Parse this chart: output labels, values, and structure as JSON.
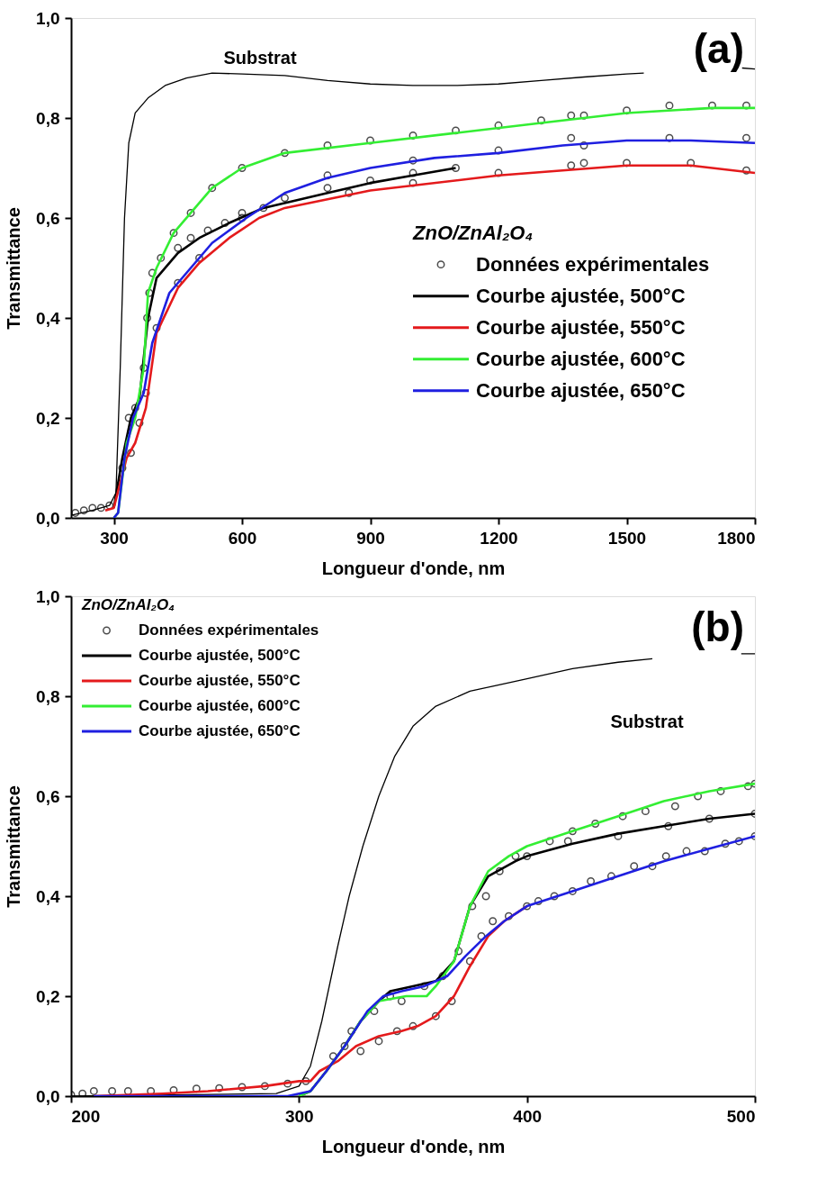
{
  "chart_data": [
    {
      "type": "line",
      "xlabel": "Longueur d'onde, nm",
      "ylabel": "Transmittance",
      "legend_title": "ZnO/ZnAl₂O₄",
      "legend": "right",
      "xlim": [
        200,
        1800
      ],
      "xticks": [
        300,
        600,
        900,
        1200,
        1500,
        1800
      ],
      "ylim": [
        0,
        1
      ],
      "yticks": [
        {
          "value": 0,
          "label": "0,0"
        },
        {
          "value": 0.2,
          "label": "0,2"
        },
        {
          "value": 0.4,
          "label": "0,4"
        },
        {
          "value": 0.6,
          "label": "0,6"
        },
        {
          "value": 0.8,
          "label": "0,8"
        },
        {
          "value": 1,
          "label": "1,0"
        }
      ],
      "annotations": [
        "(a)",
        "Substrat"
      ],
      "series": [
        {
          "color": "#000000",
          "x": [
            200,
            250,
            290,
            305,
            315,
            325,
            335,
            350,
            380,
            420,
            470,
            530,
            600,
            700,
            800,
            900,
            1000,
            1100,
            1200,
            1300,
            1400,
            1500,
            1540,
            1600,
            1770,
            1800
          ],
          "values": [
            0.005,
            0.015,
            0.025,
            0.05,
            0.3,
            0.6,
            0.75,
            0.81,
            0.84,
            0.865,
            0.88,
            0.89,
            0.888,
            0.885,
            0.875,
            0.868,
            0.865,
            0.865,
            0.868,
            0.875,
            0.882,
            0.888,
            0.89,
            null,
            0.9,
            0.898
          ]
        },
        {
          "type": "scatter",
          "name": "Données expérimentales",
          "color": "#000000",
          "marker": "circle",
          "x": [
            210,
            230,
            250,
            270,
            290,
            370,
            378,
            383,
            390,
            410,
            440,
            480,
            530,
            600,
            700,
            800,
            900,
            1000,
            1100,
            1200,
            1300,
            1370,
            1400,
            1500,
            1600,
            1700,
            1780,
            450,
            480,
            520,
            560,
            600,
            700,
            800,
            900,
            1000,
            1100,
            340,
            360,
            375,
            650,
            850,
            1000,
            1200,
            1370,
            1400,
            1500,
            1650,
            1780,
            320,
            335,
            350,
            400,
            450,
            500,
            600,
            800,
            1000,
            1200,
            1370,
            1400,
            1600,
            1780
          ],
          "values": [
            0.01,
            0.015,
            0.02,
            0.02,
            0.025,
            0.3,
            0.4,
            0.45,
            0.49,
            0.52,
            0.57,
            0.61,
            0.66,
            0.7,
            0.73,
            0.745,
            0.755,
            0.765,
            0.775,
            0.785,
            0.795,
            0.805,
            0.805,
            0.815,
            0.825,
            0.825,
            0.825,
            0.54,
            0.56,
            0.575,
            0.59,
            0.61,
            0.64,
            0.66,
            0.675,
            0.69,
            0.7,
            0.13,
            0.19,
            0.25,
            0.62,
            0.65,
            0.67,
            0.69,
            0.705,
            0.71,
            0.71,
            0.71,
            0.695,
            0.1,
            0.2,
            0.22,
            0.38,
            0.47,
            0.52,
            0.6,
            0.685,
            0.715,
            0.735,
            0.76,
            0.745,
            0.76,
            0.76
          ]
        },
        {
          "name": "Courbe ajustée, 500°C",
          "color": "#000000",
          "x": [
            300,
            320,
            340,
            360,
            380,
            400,
            450,
            500,
            570,
            650,
            800,
            900,
            1000,
            1100
          ],
          "values": [
            0.02,
            0.12,
            0.2,
            0.24,
            0.4,
            0.48,
            0.53,
            0.56,
            0.59,
            0.62,
            0.65,
            0.67,
            0.685,
            0.7
          ]
        },
        {
          "name": "Courbe ajustée, 550°C",
          "color": "#e41a1c",
          "x": [
            280,
            300,
            330,
            350,
            375,
            400,
            450,
            500,
            570,
            640,
            700,
            900,
            1200,
            1500,
            1650,
            1800
          ],
          "values": [
            0.015,
            0.02,
            0.12,
            0.15,
            0.22,
            0.37,
            0.46,
            0.51,
            0.56,
            0.6,
            0.62,
            0.655,
            0.685,
            0.705,
            0.705,
            0.69
          ]
        },
        {
          "name": "Courbe ajustée, 600°C",
          "color": "#33ee33",
          "x": [
            300,
            310,
            330,
            350,
            370,
            380,
            400,
            440,
            480,
            530,
            600,
            700,
            900,
            1100,
            1300,
            1400,
            1500,
            1700,
            1800
          ],
          "values": [
            0,
            0.01,
            0.15,
            0.2,
            0.3,
            0.45,
            0.5,
            0.57,
            0.61,
            0.66,
            0.7,
            0.73,
            0.75,
            0.77,
            0.79,
            0.8,
            0.81,
            0.82,
            0.82
          ]
        },
        {
          "name": "Courbe ajustée, 650°C",
          "color": "#1f1fe0",
          "x": [
            300,
            310,
            325,
            345,
            370,
            390,
            430,
            530,
            610,
            700,
            800,
            900,
            1050,
            1200,
            1350,
            1500,
            1650,
            1800
          ],
          "values": [
            0,
            0.01,
            0.12,
            0.2,
            0.25,
            0.35,
            0.45,
            0.55,
            0.6,
            0.65,
            0.68,
            0.7,
            0.72,
            0.73,
            0.745,
            0.755,
            0.755,
            0.75
          ]
        }
      ]
    },
    {
      "type": "line",
      "xlabel": "Longueur d'onde, nm",
      "ylabel": "Transmittance",
      "legend_title": "ZnO/ZnAl₂O₄",
      "legend": "top left",
      "xlim": [
        200,
        500
      ],
      "xticks": [
        200,
        300,
        400,
        500
      ],
      "ylim": [
        0,
        1
      ],
      "yticks": [
        {
          "value": 0,
          "label": "0,0"
        },
        {
          "value": 0.2,
          "label": "0,2"
        },
        {
          "value": 0.4,
          "label": "0,4"
        },
        {
          "value": 0.6,
          "label": "0,6"
        },
        {
          "value": 0.8,
          "label": "0,8"
        },
        {
          "value": 1,
          "label": "1,0"
        }
      ],
      "annotations": [
        "(b)",
        "Substrat"
      ],
      "series": [
        {
          "color": "#000000",
          "x": [
            200,
            290,
            300,
            305,
            310,
            317,
            322,
            328,
            335,
            342,
            350,
            360,
            375,
            380,
            400,
            420,
            440,
            455,
            470,
            494,
            500
          ],
          "values": [
            0,
            0.005,
            0.02,
            0.06,
            0.15,
            0.3,
            0.4,
            0.5,
            0.6,
            0.68,
            0.74,
            0.78,
            0.81,
            0.815,
            0.835,
            0.855,
            0.868,
            0.875,
            null,
            0.885,
            0.885
          ]
        },
        {
          "type": "scatter",
          "name": "Données expérimentales",
          "color": "#000000",
          "marker": "circle",
          "x": [
            200,
            205,
            210,
            218,
            225,
            235,
            245,
            255,
            265,
            275,
            285,
            295,
            303,
            315,
            320,
            323,
            327,
            333,
            335,
            340,
            343,
            345,
            350,
            355,
            360,
            363,
            367,
            370,
            375,
            376,
            380,
            382,
            385,
            388,
            392,
            395,
            400,
            400,
            405,
            410,
            412,
            418,
            420,
            420,
            428,
            430,
            437,
            440,
            442,
            447,
            452,
            455,
            461,
            462,
            465,
            470,
            475,
            478,
            480,
            485,
            487,
            493,
            497,
            500,
            500,
            500
          ],
          "values": [
            0.003,
            0.005,
            0.01,
            0.01,
            0.01,
            0.01,
            0.012,
            0.015,
            0.016,
            0.018,
            0.02,
            0.025,
            0.03,
            0.08,
            0.1,
            0.13,
            0.09,
            0.17,
            0.11,
            0.2,
            0.13,
            0.19,
            0.14,
            0.22,
            0.16,
            0.24,
            0.19,
            0.29,
            0.27,
            0.38,
            0.32,
            0.4,
            0.35,
            0.45,
            0.36,
            0.48,
            0.38,
            0.48,
            0.39,
            0.51,
            0.4,
            0.51,
            0.41,
            0.53,
            0.43,
            0.545,
            0.44,
            0.52,
            0.56,
            0.46,
            0.57,
            0.46,
            0.48,
            0.54,
            0.58,
            0.49,
            0.6,
            0.49,
            0.555,
            0.61,
            0.505,
            0.51,
            0.62,
            0.52,
            0.565,
            0.625
          ]
        },
        {
          "name": "Courbe ajustée, 500°C",
          "color": "#000000",
          "x": [
            300,
            305,
            312,
            320,
            327,
            335,
            340,
            350,
            360,
            368,
            375,
            383,
            395,
            400,
            420,
            440,
            460,
            480,
            500
          ],
          "values": [
            0,
            0.01,
            0.05,
            0.1,
            0.15,
            0.19,
            0.21,
            0.22,
            0.23,
            0.27,
            0.38,
            0.44,
            0.47,
            0.48,
            0.505,
            0.525,
            0.54,
            0.555,
            0.565
          ]
        },
        {
          "name": "Courbe ajustée, 550°C",
          "color": "#e41a1c",
          "x": [
            210,
            240,
            260,
            285,
            300,
            305,
            309,
            317,
            325,
            335,
            345,
            352,
            360,
            368,
            375,
            383,
            390,
            400
          ],
          "values": [
            0,
            0.005,
            0.01,
            0.02,
            0.03,
            0.03,
            0.05,
            0.07,
            0.1,
            0.12,
            0.13,
            0.14,
            0.16,
            0.2,
            0.26,
            0.32,
            0.35,
            0.38
          ]
        },
        {
          "name": "Courbe ajustée, 600°C",
          "color": "#33ee33",
          "x": [
            300,
            305,
            312,
            320,
            327,
            335,
            347,
            356,
            360,
            368,
            375,
            383,
            392,
            400,
            420,
            440,
            460,
            480,
            500
          ],
          "values": [
            0,
            0.01,
            0.05,
            0.1,
            0.15,
            0.19,
            0.2,
            0.2,
            0.22,
            0.27,
            0.38,
            0.45,
            0.48,
            0.5,
            0.53,
            0.56,
            0.59,
            0.61,
            0.625
          ]
        },
        {
          "name": "Courbe ajustée, 650°C",
          "color": "#1f1fe0",
          "x": [
            210,
            250,
            295,
            305,
            312,
            320,
            330,
            337,
            345,
            355,
            365,
            373,
            382,
            390,
            400,
            420,
            440,
            460,
            480,
            500
          ],
          "values": [
            0,
            0,
            0,
            0.01,
            0.05,
            0.1,
            0.17,
            0.2,
            0.21,
            0.22,
            0.24,
            0.28,
            0.32,
            0.35,
            0.38,
            0.41,
            0.44,
            0.47,
            0.495,
            0.52
          ]
        }
      ]
    }
  ]
}
